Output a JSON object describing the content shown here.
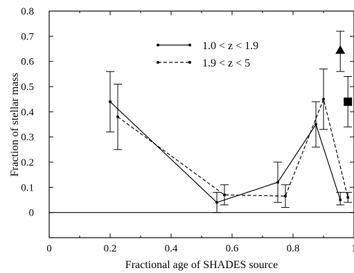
{
  "chart_data": {
    "type": "line",
    "title": "",
    "xlabel": "Fractional age of SHADES source",
    "ylabel": "Fraction of stellar mass",
    "xlim": [
      0,
      1
    ],
    "ylim": [
      -0.1,
      0.8
    ],
    "x_ticks": [
      0,
      0.2,
      0.4,
      0.6,
      0.8,
      1
    ],
    "x_tick_labels": [
      "0",
      "0.2",
      "0.4",
      "0.6",
      "0.8",
      "1"
    ],
    "y_ticks": [
      0,
      0.1,
      0.2,
      0.3,
      0.4,
      0.5,
      0.6,
      0.7,
      0.8
    ],
    "y_tick_labels": [
      "0",
      "0.1",
      "0.2",
      "0.3",
      "0.4",
      "0.5",
      "0.6",
      "0.7",
      "0.8"
    ],
    "reference_line_y": 0,
    "grid": false,
    "legend_position": "top-center",
    "series": [
      {
        "name": "1.0 < z < 1.9",
        "style": "solid",
        "points": [
          {
            "x": 0.2,
            "y": 0.44,
            "ylow": 0.32,
            "yhigh": 0.56
          },
          {
            "x": 0.55,
            "y": 0.04,
            "ylow": 0.0,
            "yhigh": 0.08
          },
          {
            "x": 0.75,
            "y": 0.12,
            "ylow": 0.04,
            "yhigh": 0.2
          },
          {
            "x": 0.875,
            "y": 0.35,
            "ylow": 0.26,
            "yhigh": 0.44
          },
          {
            "x": 0.955,
            "y": 0.05,
            "ylow": 0.03,
            "yhigh": 0.08
          }
        ]
      },
      {
        "name": "1.9 < z < 5",
        "style": "dashed",
        "points": [
          {
            "x": 0.225,
            "y": 0.38,
            "ylow": 0.25,
            "yhigh": 0.51
          },
          {
            "x": 0.575,
            "y": 0.07,
            "ylow": 0.03,
            "yhigh": 0.11
          },
          {
            "x": 0.775,
            "y": 0.065,
            "ylow": 0.02,
            "yhigh": 0.11
          },
          {
            "x": 0.9,
            "y": 0.45,
            "ylow": 0.33,
            "yhigh": 0.57
          },
          {
            "x": 0.98,
            "y": 0.06,
            "ylow": 0.04,
            "yhigh": 0.08
          }
        ]
      }
    ],
    "markers": [
      {
        "shape": "triangle",
        "x": 0.955,
        "y": 0.645,
        "ylow": 0.56,
        "yhigh": 0.72
      },
      {
        "shape": "square",
        "x": 0.98,
        "y": 0.44,
        "ylow": 0.34,
        "yhigh": 0.54
      }
    ]
  }
}
